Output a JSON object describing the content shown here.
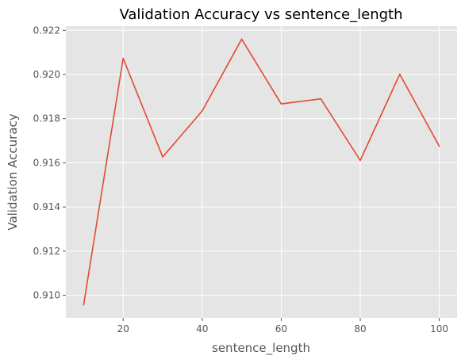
{
  "chart_data": {
    "type": "line",
    "title": "Validation Accuracy vs sentence_length",
    "xlabel": "sentence_length",
    "ylabel": "Validation Accuracy",
    "x": [
      10,
      20,
      30,
      40,
      50,
      60,
      70,
      80,
      90,
      100
    ],
    "series": [
      {
        "values": [
          0.90957,
          0.92073,
          0.91627,
          0.91835,
          0.9216,
          0.91867,
          0.9189,
          0.91611,
          0.92001,
          0.91675
        ]
      }
    ],
    "xlim": [
      5.5,
      104.5
    ],
    "ylim": [
      0.90898,
      0.92219
    ],
    "xticks": [
      20,
      40,
      60,
      80,
      100
    ],
    "xtick_labels": [
      "20",
      "40",
      "60",
      "80",
      "100"
    ],
    "yticks": [
      0.91,
      0.912,
      0.914,
      0.916,
      0.918,
      0.92,
      0.922
    ],
    "ytick_labels": [
      "0.910",
      "0.912",
      "0.914",
      "0.916",
      "0.918",
      "0.920",
      "0.922"
    ],
    "grid": true,
    "legend": "none",
    "colors": {
      "line": "#e24a33",
      "plot_background": "#e5e5e5",
      "grid": "#ffffff"
    },
    "style": "ggplot"
  }
}
